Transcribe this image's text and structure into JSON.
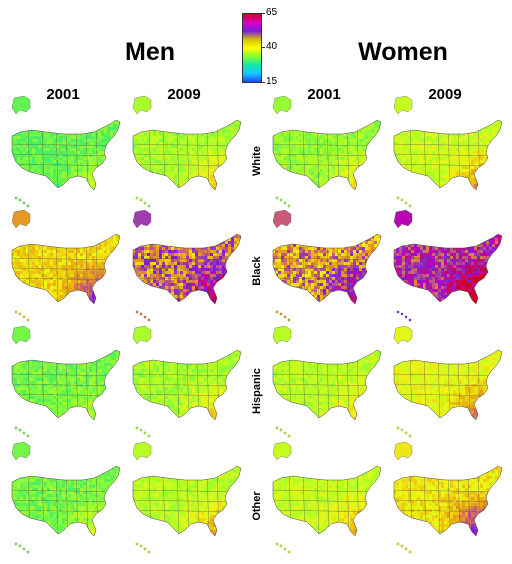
{
  "headers": {
    "men": "Men",
    "women": "Women",
    "years": [
      "2001",
      "2009",
      "2001",
      "2009"
    ]
  },
  "legend": {
    "ticks": [
      "65",
      "40",
      "15"
    ],
    "colors": [
      "#cc0020",
      "#e000c0",
      "#7a1ee0",
      "#d7c000",
      "#ffff00",
      "#86ff30",
      "#10e8a8",
      "#18c8ff",
      "#1a48ff"
    ]
  },
  "races": [
    "White",
    "Black",
    "Hispanic",
    "Other"
  ],
  "map_data": {
    "description_unit": "value shown by colour on a 15–65 scale",
    "panels": [
      {
        "race": "White",
        "sex": "Men",
        "year": "2001",
        "base": 31,
        "southeast": 3
      },
      {
        "race": "White",
        "sex": "Men",
        "year": "2009",
        "base": 35,
        "southeast": 5
      },
      {
        "race": "White",
        "sex": "Women",
        "year": "2001",
        "base": 34,
        "southeast": 4
      },
      {
        "race": "White",
        "sex": "Women",
        "year": "2009",
        "base": 37,
        "southeast": 5
      },
      {
        "race": "Black",
        "sex": "Men",
        "year": "2001",
        "base": 42,
        "southeast": 6
      },
      {
        "race": "Black",
        "sex": "Men",
        "year": "2009",
        "base": 48,
        "southeast": 9
      },
      {
        "race": "Black",
        "sex": "Women",
        "year": "2001",
        "base": 46,
        "southeast": 9
      },
      {
        "race": "Black",
        "sex": "Women",
        "year": "2009",
        "base": 54,
        "southeast": 10
      },
      {
        "race": "Hispanic",
        "sex": "Men",
        "year": "2001",
        "base": 32,
        "southeast": 2
      },
      {
        "race": "Hispanic",
        "sex": "Men",
        "year": "2009",
        "base": 35,
        "southeast": 4
      },
      {
        "race": "Hispanic",
        "sex": "Women",
        "year": "2001",
        "base": 36,
        "southeast": 3
      },
      {
        "race": "Hispanic",
        "sex": "Women",
        "year": "2009",
        "base": 39,
        "southeast": 5
      },
      {
        "race": "Other",
        "sex": "Men",
        "year": "2001",
        "base": 32,
        "southeast": 3
      },
      {
        "race": "Other",
        "sex": "Men",
        "year": "2009",
        "base": 36,
        "southeast": 5
      },
      {
        "race": "Other",
        "sex": "Women",
        "year": "2001",
        "base": 37,
        "southeast": 4
      },
      {
        "race": "Other",
        "sex": "Women",
        "year": "2009",
        "base": 41,
        "southeast": 8
      }
    ]
  }
}
